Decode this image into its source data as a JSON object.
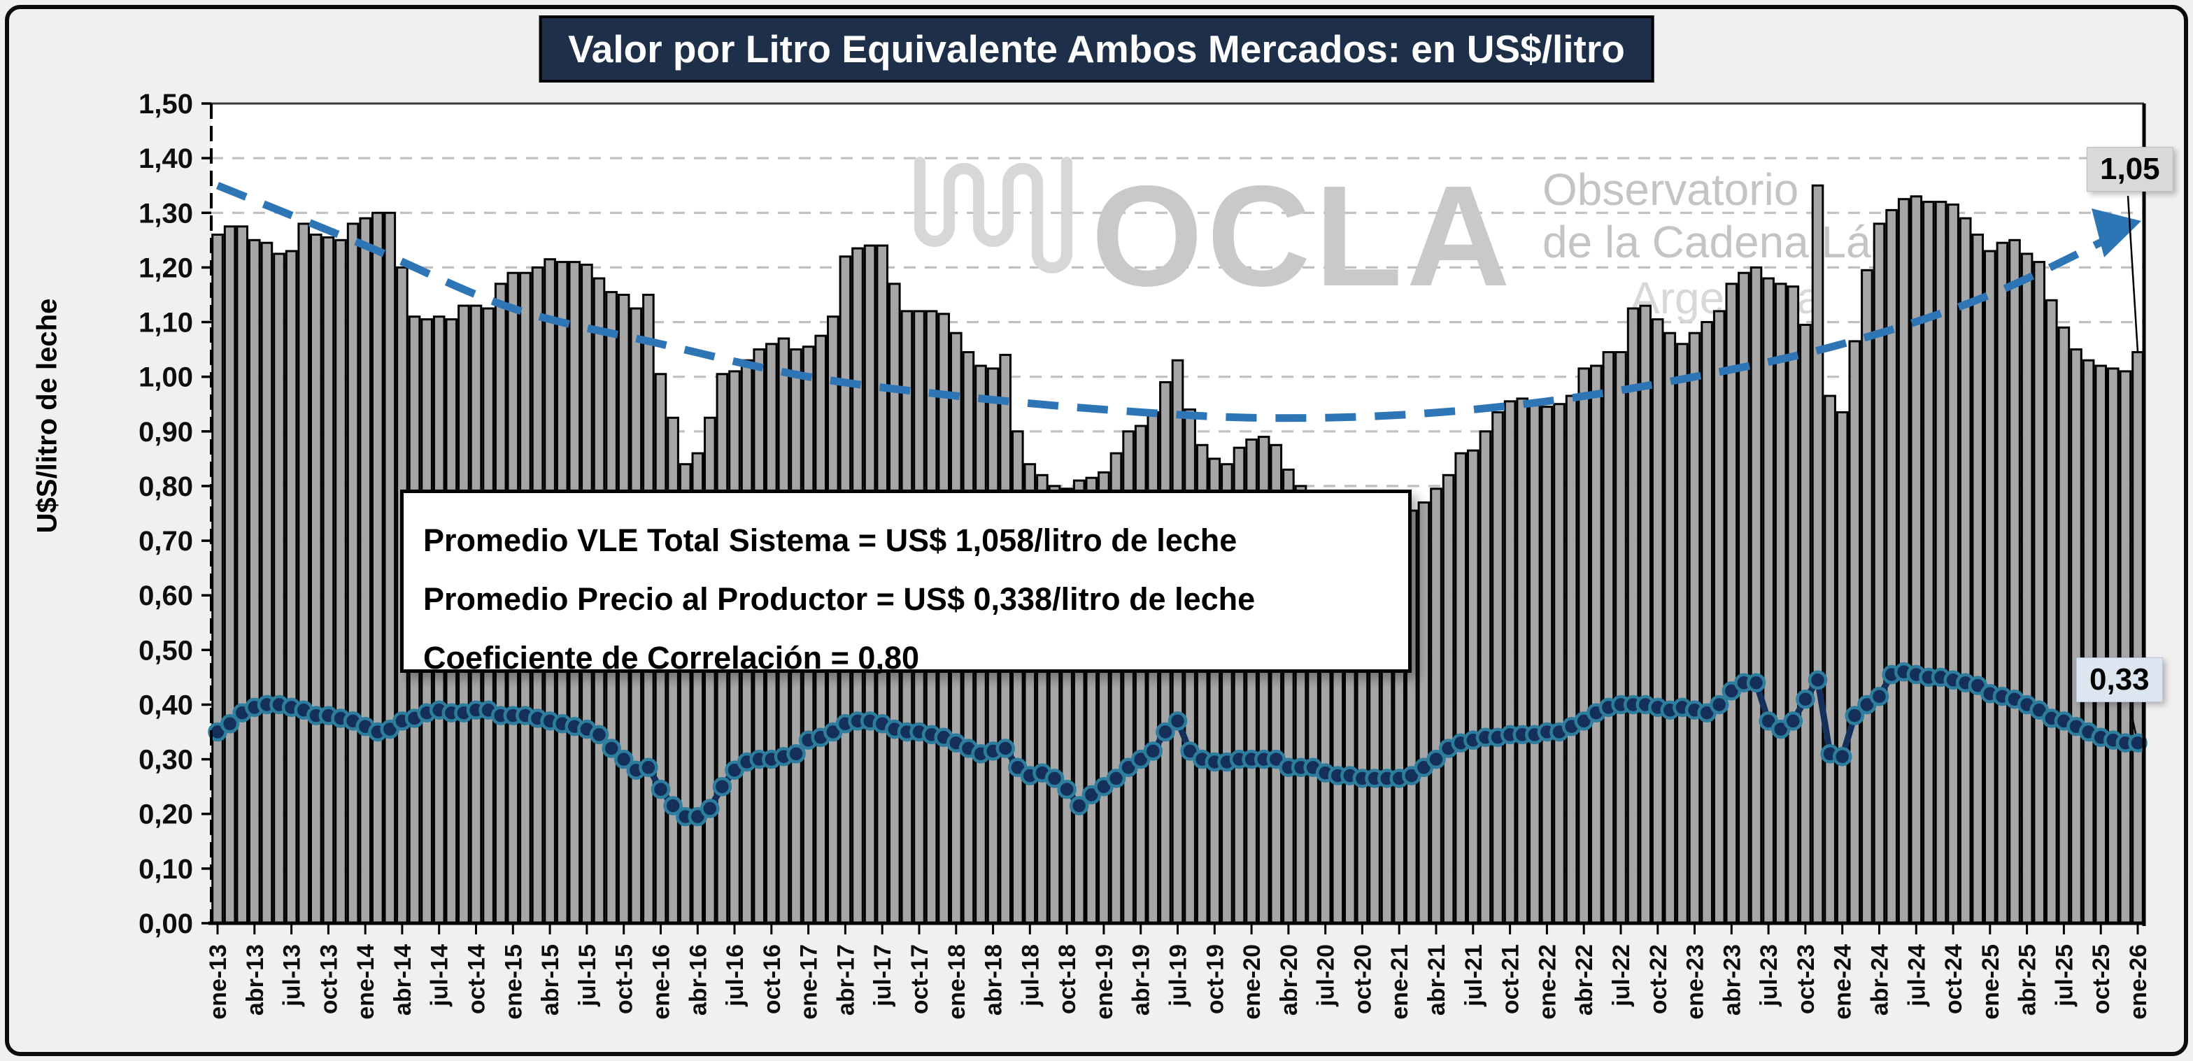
{
  "title": "Valor por Litro Equivalente Ambos Mercados: en US$/litro",
  "y_axis_title": "U$S/litro de leche",
  "annotation": {
    "line1": "Promedio VLE Total Sistema = US$ 1,058/litro de leche",
    "line2": "Promedio Precio al Productor = US$ 0,338/litro de leche",
    "line3": "Coeficiente de Correlación = 0,80"
  },
  "end_labels": {
    "vle": "1,05",
    "producer": "0,33"
  },
  "watermark": {
    "icon": "squiggle-logo-icon",
    "acronym": "OCLA",
    "line1": "Observatorio",
    "line2": "de la Cadena Láctea",
    "line3": "Argentina"
  },
  "colors": {
    "title_bg": "#1e2f49",
    "bar_fill": "#a6a6a6",
    "bar_stroke": "#000000",
    "dot_fill": "#14305a",
    "dot_ring": "#2d7d9e",
    "trend_blue": "#2e75b6",
    "gridline": "#c0c0c0",
    "watermark_gray": "#c9c9c9",
    "vle_label_bg": "#d9d9d9",
    "producer_label_bg": "#dce6f1",
    "plot_bg": "#ffffff",
    "page_bg": "#f1f0f1"
  },
  "chart_data": {
    "type": "bar",
    "title": "Valor por Litro Equivalente Ambos Mercados: en US$/litro",
    "xlabel": "",
    "ylabel": "U$S/litro de leche",
    "ylim": [
      0,
      1.5
    ],
    "grid": true,
    "legend_position": "none",
    "months_start": "ene-13",
    "months_end": "ene-26",
    "n_months": 157,
    "xticks": [
      "ene-13",
      "abr-13",
      "jul-13",
      "oct-13",
      "ene-14",
      "abr-14",
      "jul-14",
      "oct-14",
      "ene-15",
      "abr-15",
      "jul-15",
      "oct-15",
      "ene-16",
      "abr-16",
      "jul-16",
      "oct-16",
      "ene-17",
      "abr-17",
      "jul-17",
      "oct-17",
      "ene-18",
      "abr-18",
      "jul-18",
      "oct-18",
      "ene-19",
      "abr-19",
      "jul-19",
      "oct-19",
      "ene-20",
      "abr-20",
      "jul-20",
      "oct-20",
      "ene-21",
      "abr-21",
      "jul-21",
      "oct-21",
      "ene-22",
      "abr-22",
      "jul-22",
      "oct-22",
      "ene-23",
      "abr-23",
      "jul-23",
      "oct-23",
      "ene-24",
      "abr-24",
      "jul-24",
      "oct-24",
      "ene-25",
      "abr-25",
      "jul-25",
      "oct-25",
      "ene-26"
    ],
    "yticks": [
      "0,00",
      "0,10",
      "0,20",
      "0,30",
      "0,40",
      "0,50",
      "0,60",
      "0,70",
      "0,80",
      "0,90",
      "1,00",
      "1,10",
      "1,20",
      "1,30",
      "1,40",
      "1,50"
    ],
    "series": [
      {
        "name": "VLE Total Sistema",
        "type": "bar",
        "average_label": "US$ 1,058/litro de leche",
        "last_value_label": "1,05",
        "values": [
          1.26,
          1.275,
          1.275,
          1.25,
          1.245,
          1.225,
          1.23,
          1.28,
          1.26,
          1.255,
          1.25,
          1.28,
          1.29,
          1.3,
          1.3,
          1.2,
          1.11,
          1.105,
          1.11,
          1.105,
          1.13,
          1.13,
          1.125,
          1.17,
          1.19,
          1.19,
          1.2,
          1.215,
          1.21,
          1.21,
          1.205,
          1.18,
          1.155,
          1.15,
          1.125,
          1.15,
          1.005,
          0.925,
          0.84,
          0.86,
          0.925,
          1.005,
          1.01,
          1.03,
          1.05,
          1.06,
          1.07,
          1.05,
          1.055,
          1.075,
          1.11,
          1.22,
          1.235,
          1.24,
          1.24,
          1.17,
          1.12,
          1.12,
          1.12,
          1.115,
          1.08,
          1.045,
          1.02,
          1.015,
          1.04,
          0.9,
          0.84,
          0.82,
          0.8,
          0.795,
          0.81,
          0.815,
          0.825,
          0.86,
          0.9,
          0.91,
          0.935,
          0.99,
          1.03,
          0.94,
          0.875,
          0.85,
          0.84,
          0.87,
          0.885,
          0.89,
          0.875,
          0.83,
          0.8,
          0.775,
          0.77,
          0.765,
          0.76,
          0.755,
          0.755,
          0.76,
          0.75,
          0.755,
          0.77,
          0.795,
          0.82,
          0.86,
          0.865,
          0.9,
          0.935,
          0.955,
          0.96,
          0.955,
          0.945,
          0.95,
          0.965,
          1.015,
          1.02,
          1.045,
          1.045,
          1.125,
          1.13,
          1.105,
          1.08,
          1.06,
          1.08,
          1.1,
          1.12,
          1.17,
          1.19,
          1.2,
          1.18,
          1.17,
          1.165,
          1.095,
          1.35,
          0.965,
          0.935,
          1.065,
          1.195,
          1.28,
          1.305,
          1.325,
          1.33,
          1.32,
          1.32,
          1.315,
          1.29,
          1.26,
          1.23,
          1.245,
          1.25,
          1.225,
          1.21,
          1.14,
          1.09,
          1.05,
          1.03,
          1.02,
          1.015,
          1.01,
          1.045
        ]
      },
      {
        "name": "Precio al Productor",
        "type": "scatter-line",
        "average_label": "US$ 0,338/litro de leche",
        "last_value_label": "0,33",
        "values": [
          0.35,
          0.365,
          0.385,
          0.395,
          0.4,
          0.4,
          0.395,
          0.39,
          0.38,
          0.38,
          0.375,
          0.37,
          0.36,
          0.35,
          0.355,
          0.37,
          0.375,
          0.385,
          0.39,
          0.385,
          0.385,
          0.39,
          0.39,
          0.38,
          0.38,
          0.38,
          0.375,
          0.37,
          0.365,
          0.36,
          0.355,
          0.345,
          0.32,
          0.3,
          0.28,
          0.285,
          0.245,
          0.215,
          0.195,
          0.195,
          0.21,
          0.25,
          0.28,
          0.295,
          0.3,
          0.3,
          0.305,
          0.31,
          0.335,
          0.34,
          0.35,
          0.365,
          0.37,
          0.37,
          0.365,
          0.355,
          0.35,
          0.35,
          0.345,
          0.34,
          0.33,
          0.32,
          0.31,
          0.315,
          0.32,
          0.285,
          0.27,
          0.275,
          0.265,
          0.245,
          0.215,
          0.235,
          0.25,
          0.265,
          0.285,
          0.3,
          0.315,
          0.35,
          0.37,
          0.315,
          0.3,
          0.295,
          0.295,
          0.3,
          0.3,
          0.3,
          0.3,
          0.285,
          0.285,
          0.285,
          0.275,
          0.27,
          0.27,
          0.265,
          0.265,
          0.265,
          0.265,
          0.27,
          0.285,
          0.3,
          0.32,
          0.33,
          0.335,
          0.34,
          0.34,
          0.345,
          0.345,
          0.345,
          0.35,
          0.35,
          0.36,
          0.37,
          0.385,
          0.395,
          0.4,
          0.4,
          0.4,
          0.395,
          0.39,
          0.395,
          0.39,
          0.385,
          0.4,
          0.425,
          0.44,
          0.44,
          0.37,
          0.355,
          0.37,
          0.41,
          0.445,
          0.31,
          0.305,
          0.38,
          0.4,
          0.415,
          0.455,
          0.46,
          0.455,
          0.45,
          0.45,
          0.445,
          0.44,
          0.435,
          0.42,
          0.415,
          0.41,
          0.4,
          0.39,
          0.375,
          0.37,
          0.36,
          0.35,
          0.34,
          0.335,
          0.33,
          0.33
        ]
      },
      {
        "name": "Tendencia polinómica",
        "type": "dashed-trend",
        "month_index": [
          0,
          12,
          24,
          36,
          48,
          60,
          72,
          84,
          96,
          108,
          120,
          132,
          144,
          156
        ],
        "values": [
          1.35,
          1.24,
          1.125,
          1.06,
          1.0,
          0.965,
          0.94,
          0.925,
          0.93,
          0.955,
          1.0,
          1.06,
          1.15,
          1.28
        ]
      }
    ]
  }
}
